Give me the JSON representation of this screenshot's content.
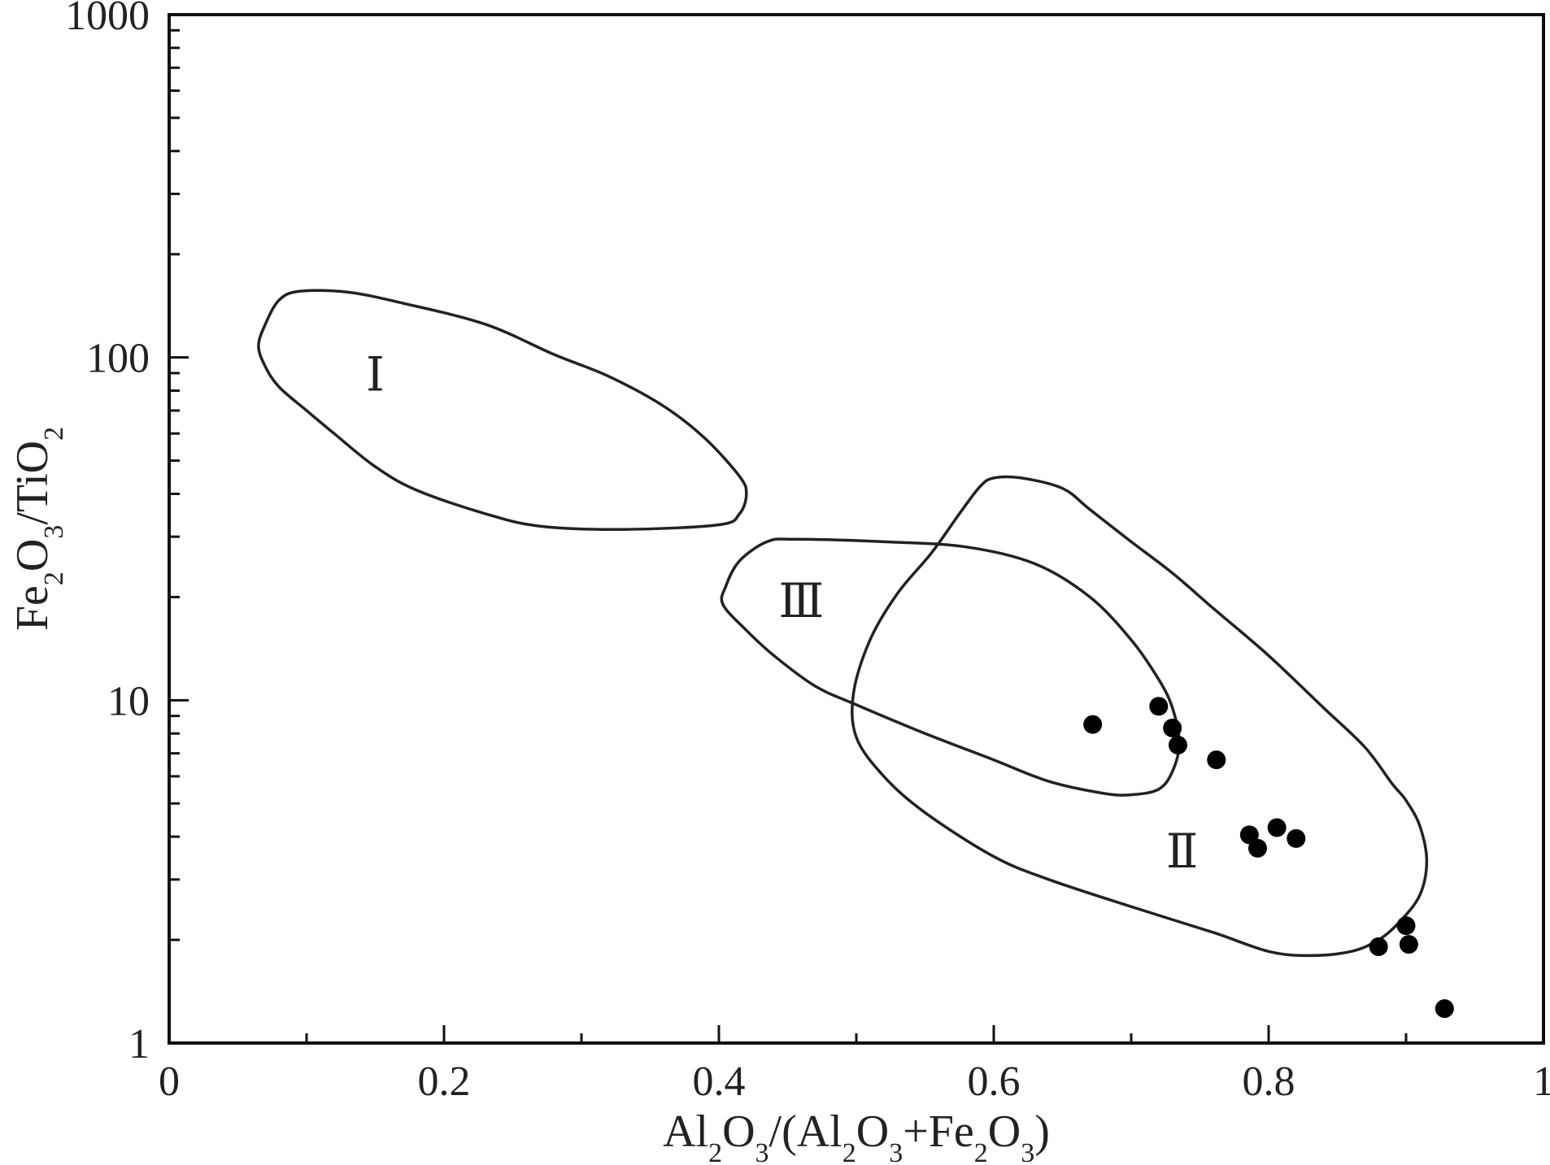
{
  "chart_data": {
    "type": "scatter",
    "title": "",
    "xlabel": {
      "parts": [
        {
          "t": "Al",
          "sub": false
        },
        {
          "t": "2",
          "sub": true
        },
        {
          "t": "O",
          "sub": false
        },
        {
          "t": "3",
          "sub": true
        },
        {
          "t": "/(Al",
          "sub": false
        },
        {
          "t": "2",
          "sub": true
        },
        {
          "t": "O",
          "sub": false
        },
        {
          "t": "3",
          "sub": true
        },
        {
          "t": "+Fe",
          "sub": false
        },
        {
          "t": "2",
          "sub": true
        },
        {
          "t": "O",
          "sub": false
        },
        {
          "t": "3",
          "sub": true
        },
        {
          "t": ")",
          "sub": false
        }
      ]
    },
    "ylabel": {
      "parts": [
        {
          "t": "Fe",
          "sub": false
        },
        {
          "t": "2",
          "sub": true
        },
        {
          "t": "O",
          "sub": false
        },
        {
          "t": "3",
          "sub": true
        },
        {
          "t": "/TiO",
          "sub": false
        },
        {
          "t": "2",
          "sub": true
        }
      ]
    },
    "xlim": [
      0,
      1
    ],
    "ylim": [
      1,
      1000
    ],
    "y_scale": "log",
    "grid": false,
    "x_ticks": [
      {
        "v": 0,
        "label": "0"
      },
      {
        "v": 0.2,
        "label": "0.2"
      },
      {
        "v": 0.4,
        "label": "0.4"
      },
      {
        "v": 0.6,
        "label": "0.6"
      },
      {
        "v": 0.8,
        "label": "0.8"
      },
      {
        "v": 1,
        "label": "1"
      }
    ],
    "x_minor_ticks": [
      0.1,
      0.3,
      0.5,
      0.7,
      0.9
    ],
    "y_ticks": [
      {
        "v": 1,
        "label": "1"
      },
      {
        "v": 10,
        "label": "10"
      },
      {
        "v": 100,
        "label": "100"
      },
      {
        "v": 1000,
        "label": "1000"
      }
    ],
    "series": [
      {
        "marker": "filled-circle",
        "color": "#000000",
        "points": [
          {
            "x": 0.672,
            "y": 8.5
          },
          {
            "x": 0.72,
            "y": 9.6
          },
          {
            "x": 0.73,
            "y": 8.3
          },
          {
            "x": 0.734,
            "y": 7.4
          },
          {
            "x": 0.762,
            "y": 6.7
          },
          {
            "x": 0.786,
            "y": 4.05
          },
          {
            "x": 0.792,
            "y": 3.7
          },
          {
            "x": 0.806,
            "y": 4.25
          },
          {
            "x": 0.82,
            "y": 3.95
          },
          {
            "x": 0.88,
            "y": 1.91
          },
          {
            "x": 0.9,
            "y": 2.2
          },
          {
            "x": 0.902,
            "y": 1.94
          },
          {
            "x": 0.928,
            "y": 1.26
          }
        ]
      }
    ],
    "regions": [
      {
        "label": "Ⅰ",
        "label_at": {
          "x": 0.15,
          "y": 80
        },
        "outline": [
          [
            0.095,
            156
          ],
          [
            0.13,
            155
          ],
          [
            0.17,
            144
          ],
          [
            0.23,
            125
          ],
          [
            0.28,
            102
          ],
          [
            0.32,
            88
          ],
          [
            0.36,
            72
          ],
          [
            0.39,
            58
          ],
          [
            0.415,
            45
          ],
          [
            0.42,
            40
          ],
          [
            0.415,
            35
          ],
          [
            0.4,
            32.5
          ],
          [
            0.33,
            31.5
          ],
          [
            0.27,
            32.2
          ],
          [
            0.23,
            35
          ],
          [
            0.18,
            41
          ],
          [
            0.15,
            48
          ],
          [
            0.12,
            60
          ],
          [
            0.1,
            70
          ],
          [
            0.08,
            82
          ],
          [
            0.07,
            94
          ],
          [
            0.065,
            108
          ],
          [
            0.07,
            125
          ],
          [
            0.08,
            147
          ],
          [
            0.095,
            156
          ]
        ]
      },
      {
        "label": "Ⅱ",
        "label_at": {
          "x": 0.737,
          "y": 3.25
        },
        "outline": [
          [
            0.6,
            44.5
          ],
          [
            0.62,
            44.5
          ],
          [
            0.65,
            41.5
          ],
          [
            0.67,
            36
          ],
          [
            0.7,
            29
          ],
          [
            0.73,
            23.5
          ],
          [
            0.76,
            18.5
          ],
          [
            0.8,
            13.5
          ],
          [
            0.84,
            9.5
          ],
          [
            0.87,
            7.3
          ],
          [
            0.89,
            5.7
          ],
          [
            0.9,
            5.1
          ],
          [
            0.91,
            4.3
          ],
          [
            0.915,
            3.4
          ],
          [
            0.91,
            2.7
          ],
          [
            0.895,
            2.25
          ],
          [
            0.88,
            2.0
          ],
          [
            0.86,
            1.85
          ],
          [
            0.83,
            1.8
          ],
          [
            0.8,
            1.85
          ],
          [
            0.76,
            2.1
          ],
          [
            0.7,
            2.5
          ],
          [
            0.64,
            3.0
          ],
          [
            0.6,
            3.5
          ],
          [
            0.55,
            4.7
          ],
          [
            0.52,
            6.0
          ],
          [
            0.5,
            7.8
          ],
          [
            0.498,
            10.5
          ],
          [
            0.51,
            15
          ],
          [
            0.53,
            20.5
          ],
          [
            0.555,
            27
          ],
          [
            0.575,
            35
          ],
          [
            0.59,
            42
          ],
          [
            0.6,
            44.5
          ]
        ]
      },
      {
        "label": "Ⅲ",
        "label_at": {
          "x": 0.46,
          "y": 17.5
        },
        "outline": [
          [
            0.455,
            29.5
          ],
          [
            0.52,
            29
          ],
          [
            0.58,
            28
          ],
          [
            0.63,
            25
          ],
          [
            0.67,
            20
          ],
          [
            0.7,
            15
          ],
          [
            0.72,
            11.5
          ],
          [
            0.73,
            9.5
          ],
          [
            0.735,
            7.5
          ],
          [
            0.73,
            6.2
          ],
          [
            0.72,
            5.5
          ],
          [
            0.7,
            5.3
          ],
          [
            0.68,
            5.35
          ],
          [
            0.64,
            5.8
          ],
          [
            0.6,
            6.7
          ],
          [
            0.55,
            8.0
          ],
          [
            0.5,
            9.7
          ],
          [
            0.47,
            11
          ],
          [
            0.44,
            13.5
          ],
          [
            0.42,
            16
          ],
          [
            0.403,
            19
          ],
          [
            0.405,
            21.5
          ],
          [
            0.415,
            25.5
          ],
          [
            0.435,
            29
          ],
          [
            0.455,
            29.5
          ]
        ]
      }
    ]
  }
}
